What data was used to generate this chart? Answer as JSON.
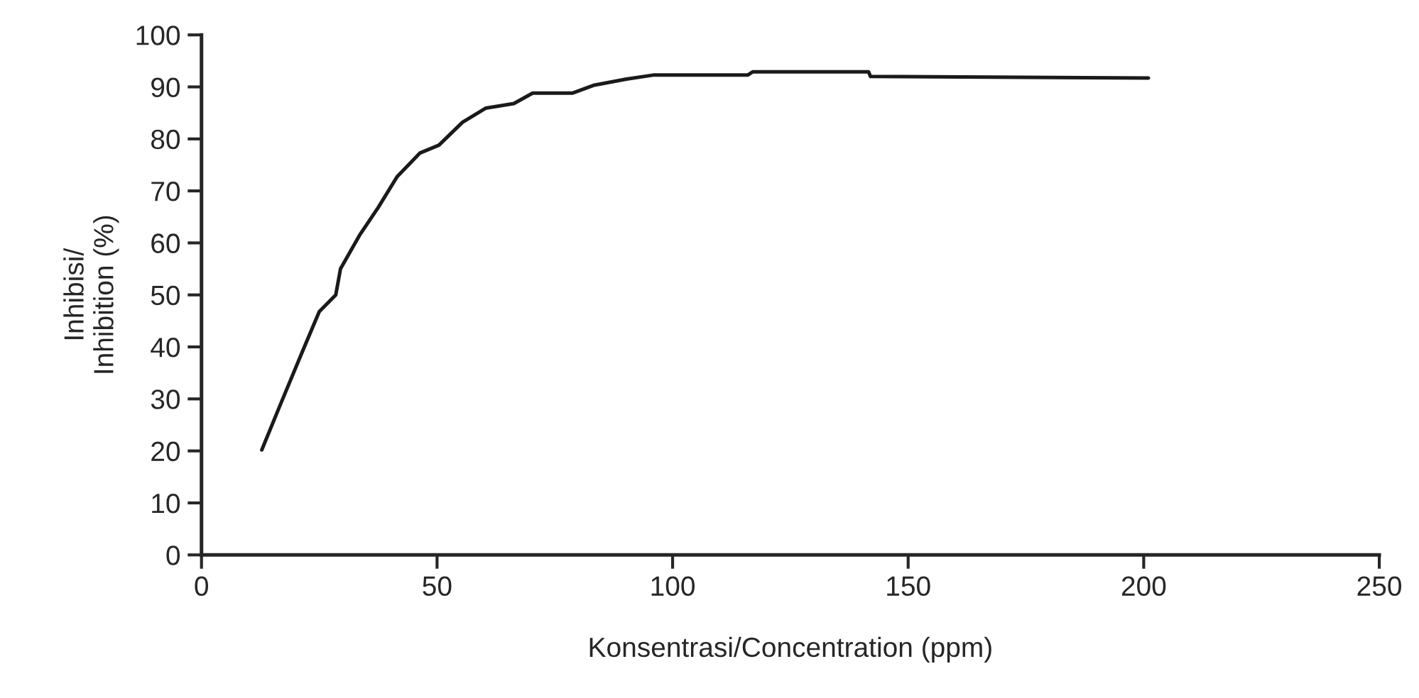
{
  "chart_data": {
    "type": "line",
    "xlabel": "Konsentrasi/Concentration (ppm)",
    "ylabel": "Inhibisi/\nInhibition (%)",
    "series": [
      {
        "color": "#1a1a1a",
        "x": [
          12.8,
          16.6,
          21.6,
          25,
          28.5,
          29.5,
          33.5,
          37.5,
          41.5,
          46.4,
          50.4,
          55.4,
          60.3,
          66.3,
          70.3,
          78.7,
          83.2,
          90.2,
          96.1,
          116,
          117,
          141.6,
          142,
          201
        ],
        "values": [
          20.2,
          28.6,
          39.5,
          46.8,
          50,
          55,
          61.4,
          66.8,
          72.7,
          77.3,
          78.8,
          83.2,
          85.9,
          86.8,
          88.8,
          88.8,
          90.3,
          91.5,
          92.3,
          92.3,
          92.9,
          92.9,
          92.0,
          91.7
        ]
      }
    ],
    "xlim": [
      0,
      250
    ],
    "xticks": [
      0,
      50,
      100,
      150,
      200,
      250
    ],
    "ylim": [
      0,
      100
    ],
    "yticks": [
      0,
      10,
      20,
      30,
      40,
      50,
      60,
      70,
      80,
      90,
      100
    ],
    "grid": false,
    "legend": false
  }
}
